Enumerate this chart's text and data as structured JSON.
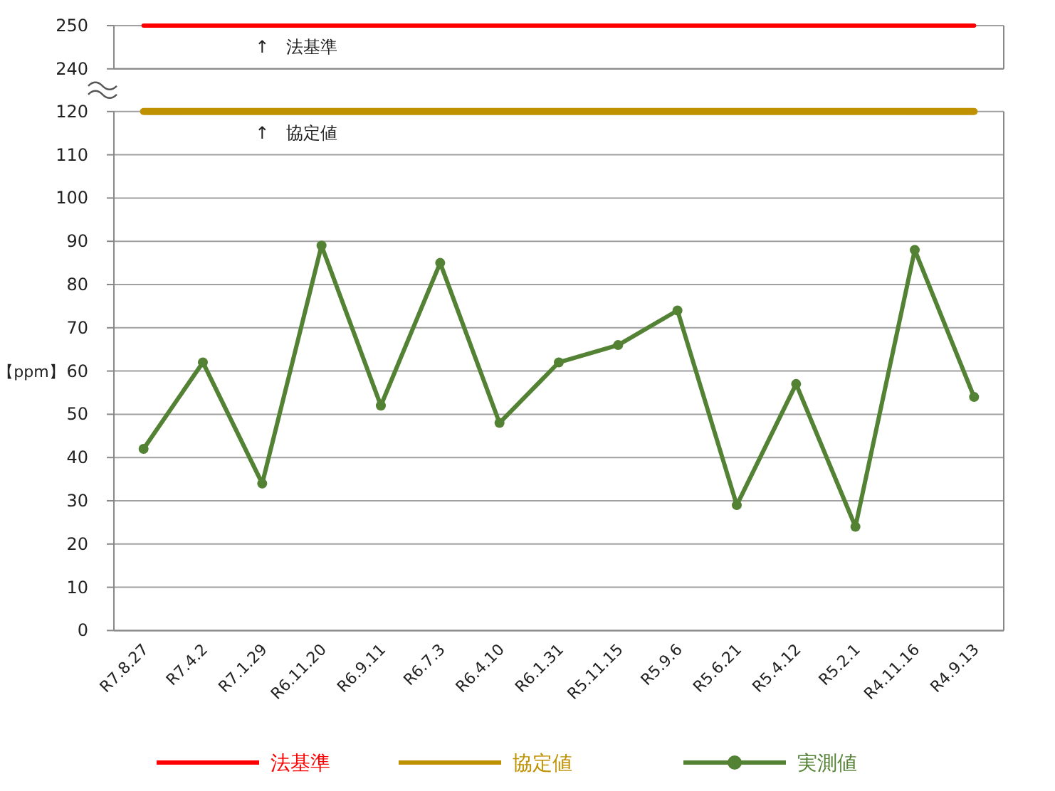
{
  "chart_data": [
    {
      "type": "line",
      "series": [
        {
          "name": "法基準",
          "color": "#ff0000",
          "marker": "none",
          "values": [
            250,
            250,
            250,
            250,
            250,
            250,
            250,
            250,
            250,
            250,
            250,
            250,
            250,
            250,
            250
          ]
        }
      ],
      "ylim": [
        240,
        250
      ],
      "yticks": [
        240,
        250
      ],
      "grid": "y",
      "legend": "bottom",
      "tick_labels": "y",
      "annotations": [
        "↑　法基準"
      ]
    },
    {
      "type": "line",
      "ylabel": "【ppm】",
      "categories": [
        "R7.8.27",
        "R7.4.2",
        "R7.1.29",
        "R6.11.20",
        "R6.9.11",
        "R6.7.3",
        "R6.4.10",
        "R6.1.31",
        "R5.11.15",
        "R5.9.6",
        "R5.6.21",
        "R5.4.12",
        "R5.2.1",
        "R4.11.16",
        "R4.9.13"
      ],
      "series": [
        {
          "name": "協定値",
          "color": "#bf9000",
          "marker": "none",
          "values": [
            120,
            120,
            120,
            120,
            120,
            120,
            120,
            120,
            120,
            120,
            120,
            120,
            120,
            120,
            120
          ]
        },
        {
          "name": "実測値",
          "color": "#548235",
          "marker": "circle",
          "values": [
            42,
            62,
            34,
            89,
            52,
            85,
            48,
            62,
            66,
            74,
            29,
            57,
            24,
            88,
            54
          ]
        }
      ],
      "ylim": [
        0,
        120
      ],
      "yticks": [
        0,
        10,
        20,
        30,
        40,
        50,
        60,
        70,
        80,
        90,
        100,
        110,
        120
      ],
      "grid": "y",
      "legend": "bottom",
      "annotations": [
        "↑　協定値"
      ]
    }
  ]
}
